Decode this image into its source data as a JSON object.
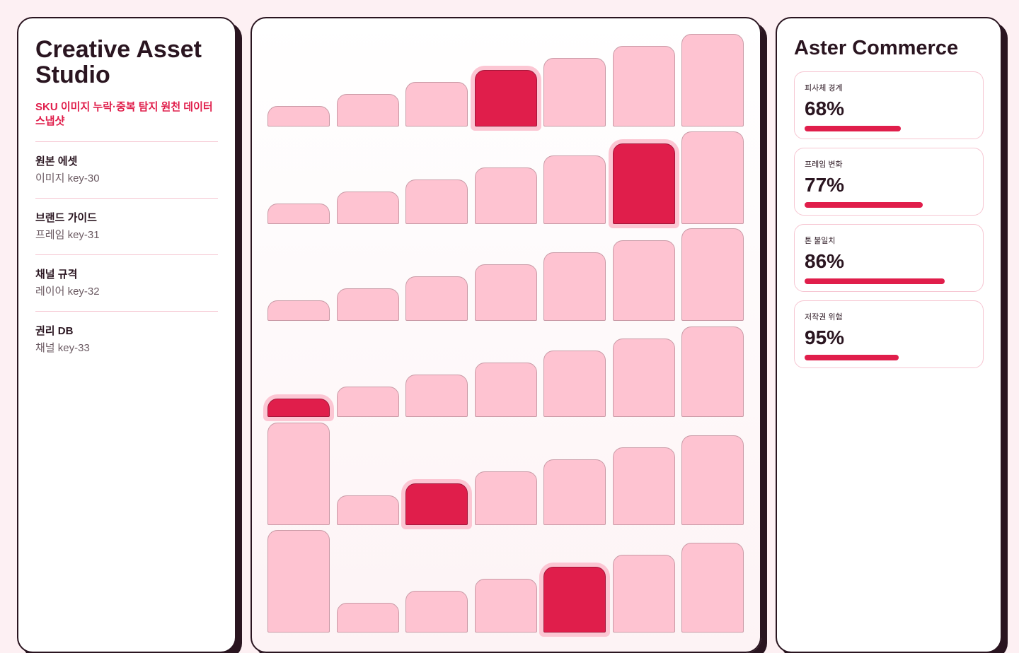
{
  "sidebar": {
    "title": "Creative Asset Studio",
    "subtitle": "SKU 이미지 누락·중복 탐지 원천 데이터 스냅샷",
    "items": [
      {
        "label": "원본 에셋",
        "detail": "이미지 key-30"
      },
      {
        "label": "브랜드 가이드",
        "detail": "프레임 key-31"
      },
      {
        "label": "채널 규격",
        "detail": "레이어 key-32"
      },
      {
        "label": "권리 DB",
        "detail": "채널 key-33"
      }
    ]
  },
  "panel": {
    "title": "Aster Commerce",
    "metrics": [
      {
        "label": "피사체 경계",
        "value": "68%"
      },
      {
        "label": "프레임 변화",
        "value": "77%"
      },
      {
        "label": "톤 불일치",
        "value": "86%"
      },
      {
        "label": "저작권 위험",
        "value": "95%"
      }
    ]
  }
}
